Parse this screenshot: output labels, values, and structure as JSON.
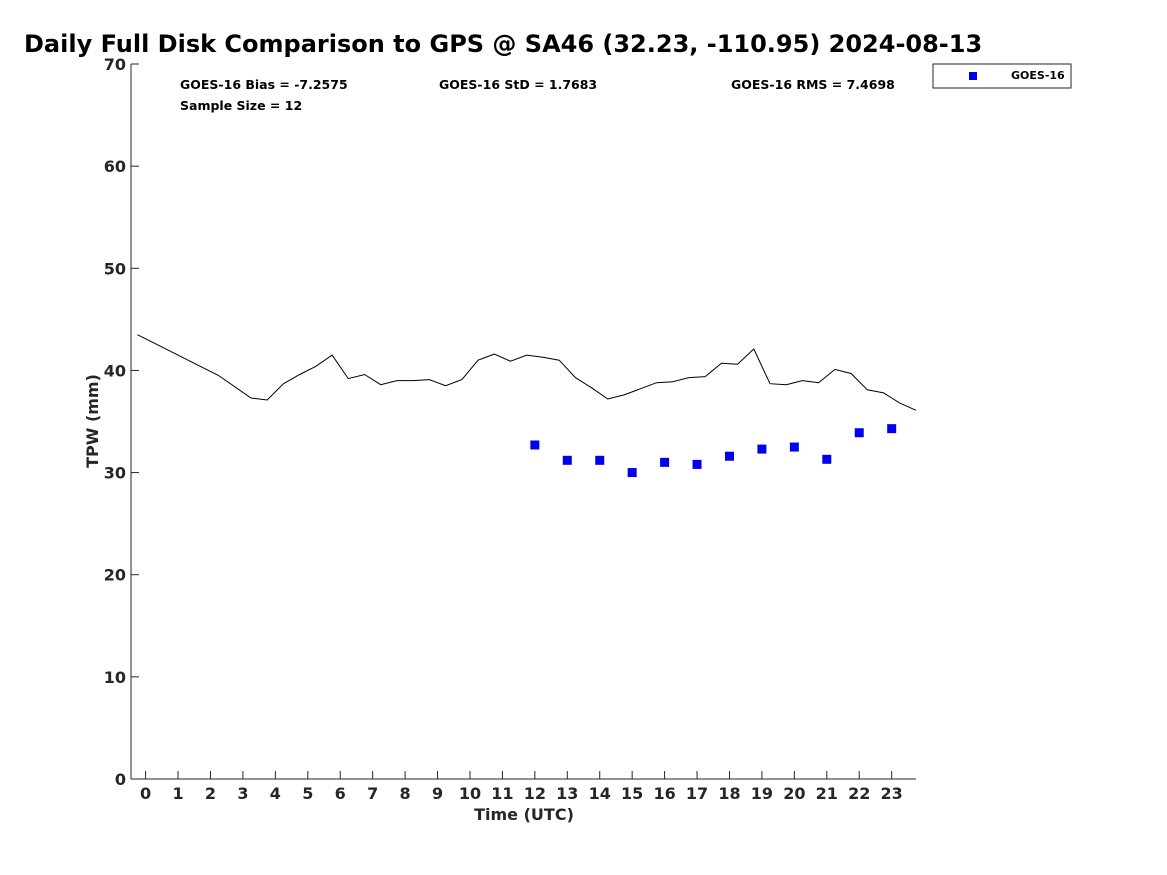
{
  "chart_data": {
    "type": "scatter",
    "title": "Daily Full Disk Comparison to GPS @ SA46 (32.23, -110.95) 2024-08-13",
    "xlabel": "Time (UTC)",
    "ylabel": "TPW (mm)",
    "xlim": [
      -0.45,
      23.75
    ],
    "ylim": [
      0,
      70
    ],
    "x_ticks": [
      0,
      1,
      2,
      3,
      4,
      5,
      6,
      7,
      8,
      9,
      10,
      11,
      12,
      13,
      14,
      15,
      16,
      17,
      18,
      19,
      20,
      21,
      22,
      23
    ],
    "x_tick_labels": [
      "0",
      "1",
      "2",
      "3",
      "4",
      "5",
      "6",
      "7",
      "8",
      "9",
      "10",
      "11",
      "12",
      "13",
      "14",
      "15",
      "16",
      "17",
      "18",
      "19",
      "20",
      "21",
      "22",
      "23"
    ],
    "y_ticks": [
      0,
      10,
      20,
      30,
      40,
      50,
      60,
      70
    ],
    "y_tick_labels": [
      "0",
      "10",
      "20",
      "30",
      "40",
      "50",
      "60",
      "70"
    ],
    "grid": false,
    "legend_position": "outside-top-right",
    "stats": {
      "bias": "GOES-16 Bias = -7.2575",
      "std": "GOES-16 StD = 1.7683",
      "rms": "GOES-16 RMS = 7.4698",
      "sample_size": "Sample Size = 12"
    },
    "series": [
      {
        "name": "GOES-16",
        "kind": "scatter",
        "marker": "square",
        "color": "#0000ee",
        "x": [
          12,
          13,
          14,
          15,
          16,
          17,
          18,
          19,
          20,
          21,
          22,
          23
        ],
        "y": [
          32.7,
          31.2,
          31.2,
          30.0,
          31.0,
          30.8,
          31.6,
          32.3,
          32.5,
          31.3,
          33.9,
          34.3
        ]
      },
      {
        "kind": "line",
        "color": "#000000",
        "x": [
          -0.25,
          2.25,
          3.25,
          3.75,
          4.25,
          4.75,
          5.25,
          5.75,
          6.25,
          6.75,
          7.25,
          7.75,
          8.25,
          8.75,
          9.25,
          9.75,
          10.25,
          10.75,
          11.25,
          11.75,
          12.25,
          12.75,
          13.25,
          13.75,
          14.25,
          14.75,
          15.25,
          15.75,
          16.25,
          16.75,
          17.25,
          17.75,
          18.25,
          18.75,
          19.25,
          19.75,
          20.25,
          20.75,
          21.25,
          21.75,
          22.25,
          22.75,
          23.25,
          23.75
        ],
        "y": [
          43.5,
          39.5,
          37.3,
          37.1,
          38.7,
          39.6,
          40.4,
          41.5,
          39.2,
          39.6,
          38.6,
          39.0,
          39.0,
          39.1,
          38.5,
          39.1,
          41.0,
          41.6,
          40.9,
          41.5,
          41.3,
          41.0,
          39.3,
          38.3,
          37.2,
          37.6,
          38.2,
          38.8,
          38.9,
          39.3,
          39.4,
          40.7,
          40.6,
          42.1,
          38.7,
          38.6,
          39.0,
          38.8,
          40.1,
          39.7,
          38.1,
          37.8,
          36.8,
          36.1
        ]
      }
    ]
  }
}
